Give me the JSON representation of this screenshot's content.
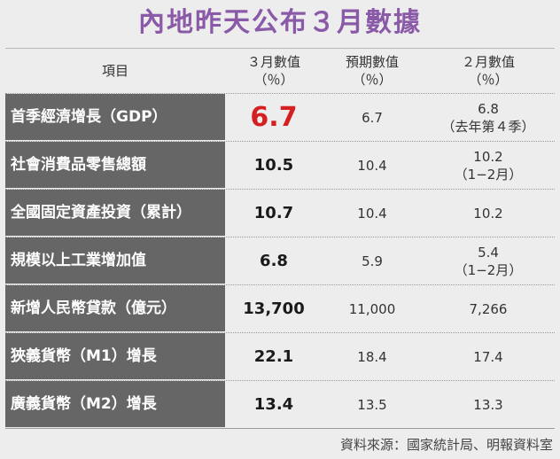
{
  "title": "內地昨天公布３月數據",
  "header": {
    "item": "項目",
    "march_line1": "３月數值",
    "march_line2": "（％）",
    "forecast_line1": "預期數值",
    "forecast_line2": "（％）",
    "feb_line1": "２月數值",
    "feb_line2": "（％）"
  },
  "rows": [
    {
      "label": "首季經濟增長（GDP）",
      "march": "6.7",
      "forecast": "6.7",
      "feb1": "6.8",
      "feb2": "（去年第４季）"
    },
    {
      "label": "社會消費品零售總額",
      "march": "10.5",
      "forecast": "10.4",
      "feb1": "10.2",
      "feb2": "（1−2月）"
    },
    {
      "label": "全國固定資產投資（累計）",
      "march": "10.7",
      "forecast": "10.4",
      "feb1": "10.2",
      "feb2": ""
    },
    {
      "label": "規模以上工業增加值",
      "march": "6.8",
      "forecast": "5.9",
      "feb1": "5.4",
      "feb2": "（1−2月）"
    },
    {
      "label": "新增人民幣貸款（億元）",
      "march": "13,700",
      "forecast": "11,000",
      "feb1": "7,266",
      "feb2": ""
    },
    {
      "label": "狹義貨幣（M1）增長",
      "march": "22.1",
      "forecast": "18.4",
      "feb1": "17.4",
      "feb2": ""
    },
    {
      "label": "廣義貨幣（M2）增長",
      "march": "13.4",
      "forecast": "13.5",
      "feb1": "13.3",
      "feb2": ""
    }
  ],
  "source": "資料來源：國家統計局、明報資料室",
  "colors": {
    "title": "#8a5aa8",
    "highlight": "#d42020",
    "label_bg": "#666666",
    "background": "#ededed"
  }
}
